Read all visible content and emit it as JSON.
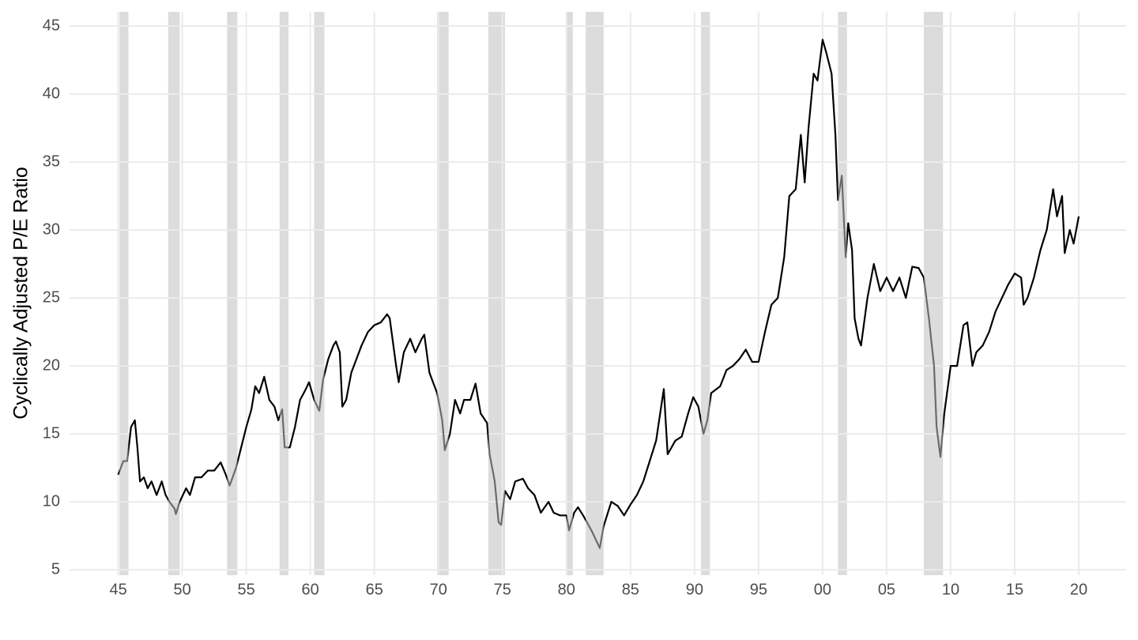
{
  "chart_data": {
    "type": "line",
    "y_label": "Cyclically Adjusted P/E Ratio",
    "color": "#000000",
    "recession_line_color": "#6b6b6b",
    "recession_color": "#dcdcdc",
    "grid": true,
    "xlim": [
      1941.2,
      2023.7
    ],
    "xticks": [
      {
        "value": 1945,
        "label": "45"
      },
      {
        "value": 1950,
        "label": "50"
      },
      {
        "value": 1955,
        "label": "55"
      },
      {
        "value": 1960,
        "label": "60"
      },
      {
        "value": 1965,
        "label": "65"
      },
      {
        "value": 1970,
        "label": "70"
      },
      {
        "value": 1975,
        "label": "75"
      },
      {
        "value": 1980,
        "label": "80"
      },
      {
        "value": 1985,
        "label": "85"
      },
      {
        "value": 1990,
        "label": "90"
      },
      {
        "value": 1995,
        "label": "95"
      },
      {
        "value": 2000,
        "label": "00"
      },
      {
        "value": 2005,
        "label": "05"
      },
      {
        "value": 2010,
        "label": "10"
      },
      {
        "value": 2015,
        "label": "15"
      },
      {
        "value": 2020,
        "label": "20"
      }
    ],
    "ylim": [
      4.6,
      46.05
    ],
    "yticks": [
      5,
      10,
      15,
      20,
      25,
      30,
      35,
      40,
      45
    ],
    "recessions": [
      [
        1945.1,
        1945.8
      ],
      [
        1948.9,
        1949.8
      ],
      [
        1953.5,
        1954.3
      ],
      [
        1957.6,
        1958.3
      ],
      [
        1960.3,
        1961.1
      ],
      [
        1969.9,
        1970.8
      ],
      [
        1973.9,
        1975.2
      ],
      [
        1980.0,
        1980.5
      ],
      [
        1981.5,
        1982.9
      ],
      [
        1990.5,
        1991.2
      ],
      [
        2001.2,
        2001.9
      ],
      [
        2007.9,
        2009.4
      ]
    ],
    "x": [
      1945.0,
      1945.4,
      1945.7,
      1946.0,
      1946.3,
      1946.5,
      1946.7,
      1947.0,
      1947.3,
      1947.6,
      1948.0,
      1948.4,
      1948.7,
      1949.0,
      1949.4,
      1949.5,
      1949.8,
      1950.3,
      1950.6,
      1951.0,
      1951.5,
      1952.0,
      1952.5,
      1953.0,
      1953.4,
      1953.7,
      1954.2,
      1954.6,
      1955.0,
      1955.4,
      1955.7,
      1956.0,
      1956.4,
      1956.8,
      1957.2,
      1957.5,
      1957.8,
      1958.0,
      1958.4,
      1958.8,
      1959.2,
      1959.6,
      1959.9,
      1960.3,
      1960.7,
      1961.0,
      1961.4,
      1961.8,
      1962.0,
      1962.3,
      1962.5,
      1962.8,
      1963.2,
      1963.6,
      1964.0,
      1964.5,
      1965.0,
      1965.5,
      1966.0,
      1966.2,
      1966.7,
      1966.9,
      1967.3,
      1967.8,
      1968.2,
      1968.7,
      1968.9,
      1969.3,
      1969.7,
      1969.9,
      1970.3,
      1970.5,
      1970.9,
      1971.3,
      1971.7,
      1972.0,
      1972.5,
      1972.9,
      1973.3,
      1973.8,
      1974.0,
      1974.4,
      1974.7,
      1974.9,
      1975.2,
      1975.6,
      1976.0,
      1976.6,
      1977.0,
      1977.5,
      1978.0,
      1978.6,
      1979.0,
      1979.5,
      1980.0,
      1980.2,
      1980.6,
      1980.9,
      1981.3,
      1981.6,
      1982.0,
      1982.5,
      1982.6,
      1982.9,
      1983.5,
      1984.0,
      1984.5,
      1985.0,
      1985.5,
      1986.0,
      1986.5,
      1987.0,
      1987.6,
      1987.9,
      1988.5,
      1989.0,
      1989.5,
      1989.9,
      1990.3,
      1990.7,
      1991.0,
      1991.3,
      1992.0,
      1992.5,
      1993.0,
      1993.5,
      1994.0,
      1994.5,
      1995.0,
      1995.5,
      1996.0,
      1996.5,
      1997.0,
      1997.4,
      1997.9,
      1998.3,
      1998.6,
      1998.9,
      1999.3,
      1999.6,
      2000.0,
      2000.3,
      2000.7,
      2001.0,
      2001.2,
      2001.5,
      2001.8,
      2002.0,
      2002.3,
      2002.5,
      2002.8,
      2003.0,
      2003.5,
      2004.0,
      2004.5,
      2005.0,
      2005.5,
      2006.0,
      2006.5,
      2007.0,
      2007.5,
      2007.9,
      2008.3,
      2008.7,
      2008.9,
      2009.2,
      2009.5,
      2010.0,
      2010.5,
      2011.0,
      2011.3,
      2011.7,
      2012.0,
      2012.5,
      2013.0,
      2013.5,
      2014.0,
      2014.5,
      2015.0,
      2015.5,
      2015.7,
      2016.0,
      2016.5,
      2017.0,
      2017.5,
      2018.0,
      2018.3,
      2018.7,
      2018.9,
      2019.3,
      2019.6,
      2020.0
    ],
    "values": [
      12.0,
      13.0,
      13.0,
      15.5,
      16.0,
      14.0,
      11.5,
      11.8,
      11.0,
      11.5,
      10.5,
      11.5,
      10.5,
      10.0,
      9.5,
      9.1,
      10.0,
      11.0,
      10.5,
      11.8,
      11.8,
      12.3,
      12.3,
      12.9,
      12.0,
      11.2,
      12.5,
      14.0,
      15.5,
      16.8,
      18.5,
      18.0,
      19.2,
      17.5,
      17.0,
      16.0,
      16.8,
      14.0,
      14.0,
      15.5,
      17.5,
      18.2,
      18.8,
      17.5,
      16.7,
      19.0,
      20.5,
      21.5,
      21.8,
      21.0,
      17.0,
      17.5,
      19.5,
      20.5,
      21.5,
      22.5,
      23.0,
      23.2,
      23.8,
      23.5,
      20.0,
      18.8,
      21.0,
      22.0,
      21.0,
      22.0,
      22.3,
      19.5,
      18.5,
      18.0,
      16.0,
      13.8,
      15.0,
      17.5,
      16.5,
      17.5,
      17.5,
      18.7,
      16.5,
      15.8,
      13.5,
      11.5,
      8.5,
      8.3,
      10.8,
      10.2,
      11.5,
      11.7,
      11.0,
      10.5,
      9.2,
      10.0,
      9.2,
      9.0,
      9.0,
      7.9,
      9.2,
      9.6,
      9.0,
      8.5,
      7.8,
      6.8,
      6.6,
      8.2,
      10.0,
      9.7,
      9.0,
      9.8,
      10.5,
      11.5,
      13.0,
      14.5,
      18.3,
      13.5,
      14.5,
      14.8,
      16.5,
      17.7,
      17.0,
      15.0,
      16.0,
      18.0,
      18.5,
      19.7,
      20.0,
      20.5,
      21.2,
      20.3,
      20.3,
      22.5,
      24.5,
      25.0,
      28.0,
      32.5,
      33.0,
      37.0,
      33.5,
      37.5,
      41.5,
      41.0,
      44.0,
      43.0,
      41.5,
      37.0,
      32.2,
      34.0,
      28.0,
      30.5,
      28.5,
      23.5,
      22.0,
      21.5,
      25.0,
      27.5,
      25.5,
      26.5,
      25.5,
      26.5,
      25.0,
      27.3,
      27.2,
      26.5,
      23.5,
      20.0,
      15.5,
      13.3,
      16.5,
      20.0,
      20.0,
      23.0,
      23.2,
      20.0,
      21.0,
      21.5,
      22.5,
      24.0,
      25.0,
      26.0,
      26.8,
      26.5,
      24.5,
      25.0,
      26.5,
      28.5,
      30.0,
      33.0,
      31.0,
      32.5,
      28.3,
      30.0,
      29.0,
      31.0
    ]
  }
}
